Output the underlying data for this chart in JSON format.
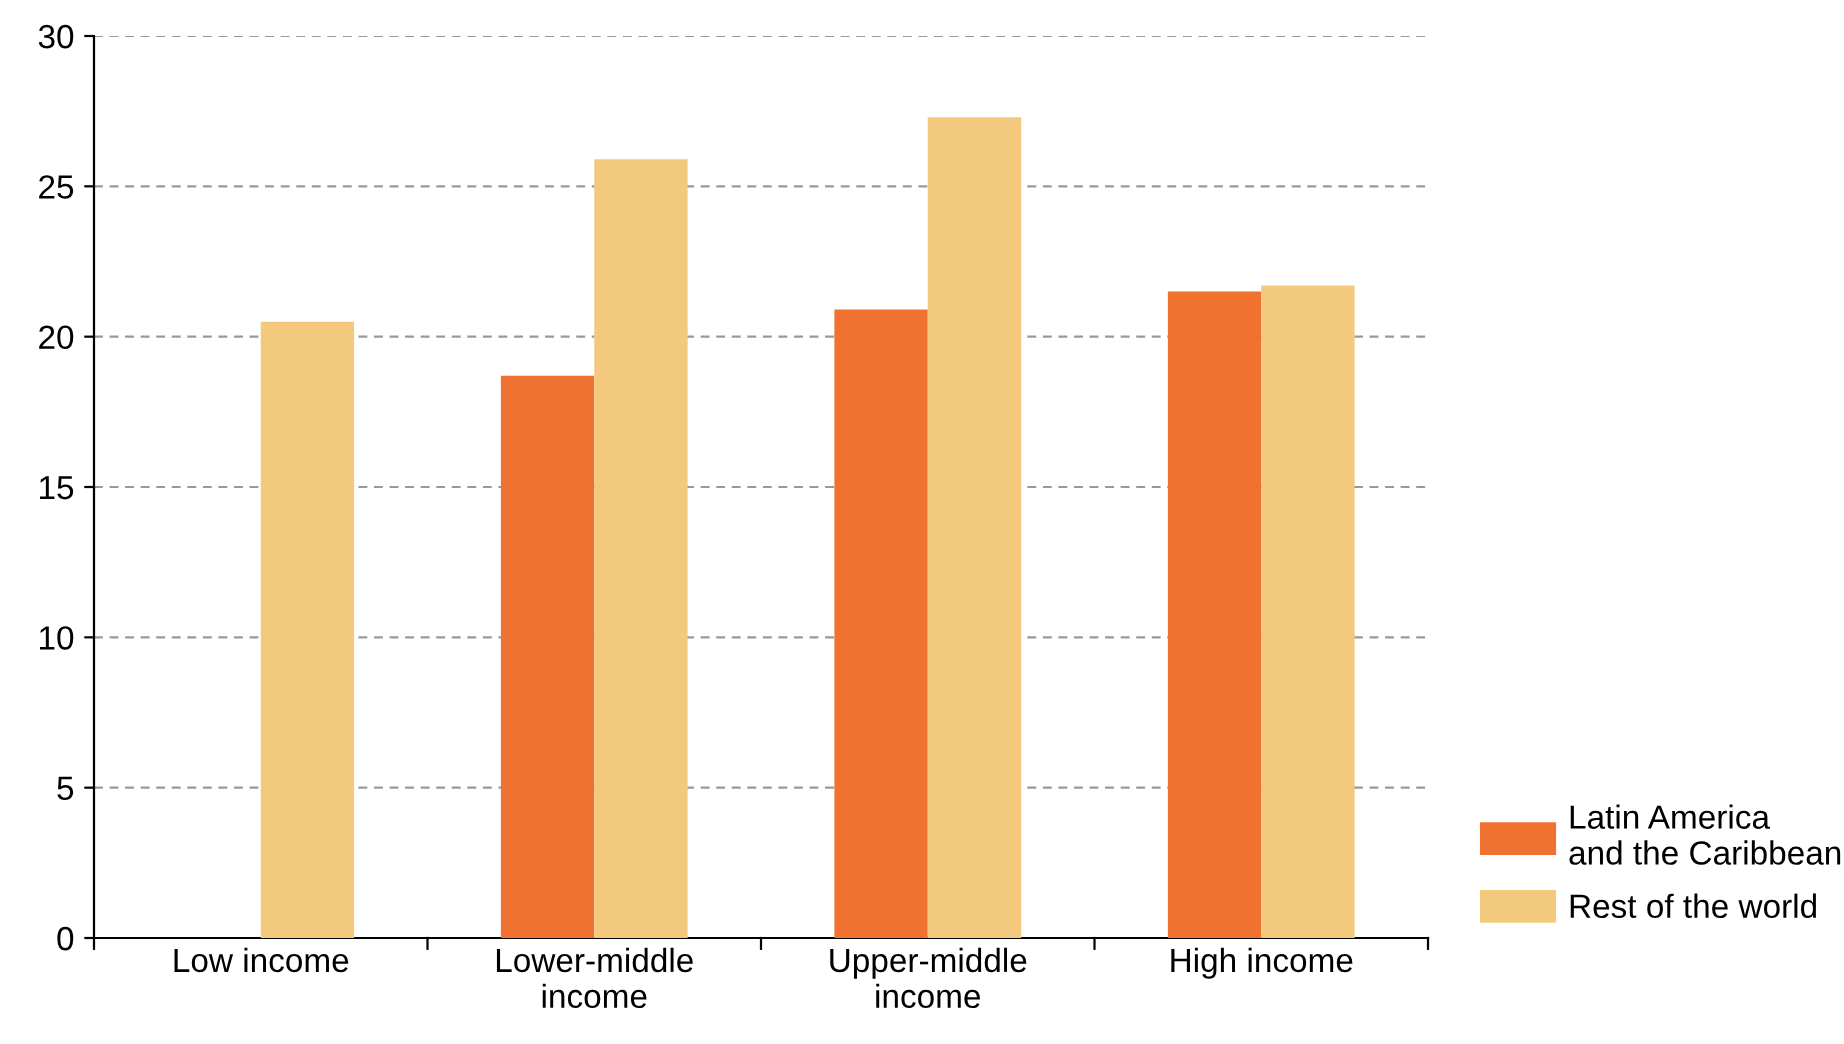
{
  "chart_data": {
    "type": "bar",
    "categories": [
      "Low income",
      "Lower-middle\nincome",
      "Upper-middle\nincome",
      "High income"
    ],
    "series": [
      {
        "name": "Latin America\nand the Caribbean",
        "color": "#f07230",
        "values": [
          null,
          18.7,
          20.9,
          21.5
        ]
      },
      {
        "name": "Rest of the world",
        "color": "#f2c97d",
        "values": [
          20.5,
          25.9,
          27.3,
          21.7
        ]
      }
    ],
    "ylim": [
      0,
      30
    ],
    "yticks": [
      0,
      5,
      10,
      15,
      20,
      25,
      30
    ],
    "grid": "y",
    "legend": "bottom right"
  }
}
